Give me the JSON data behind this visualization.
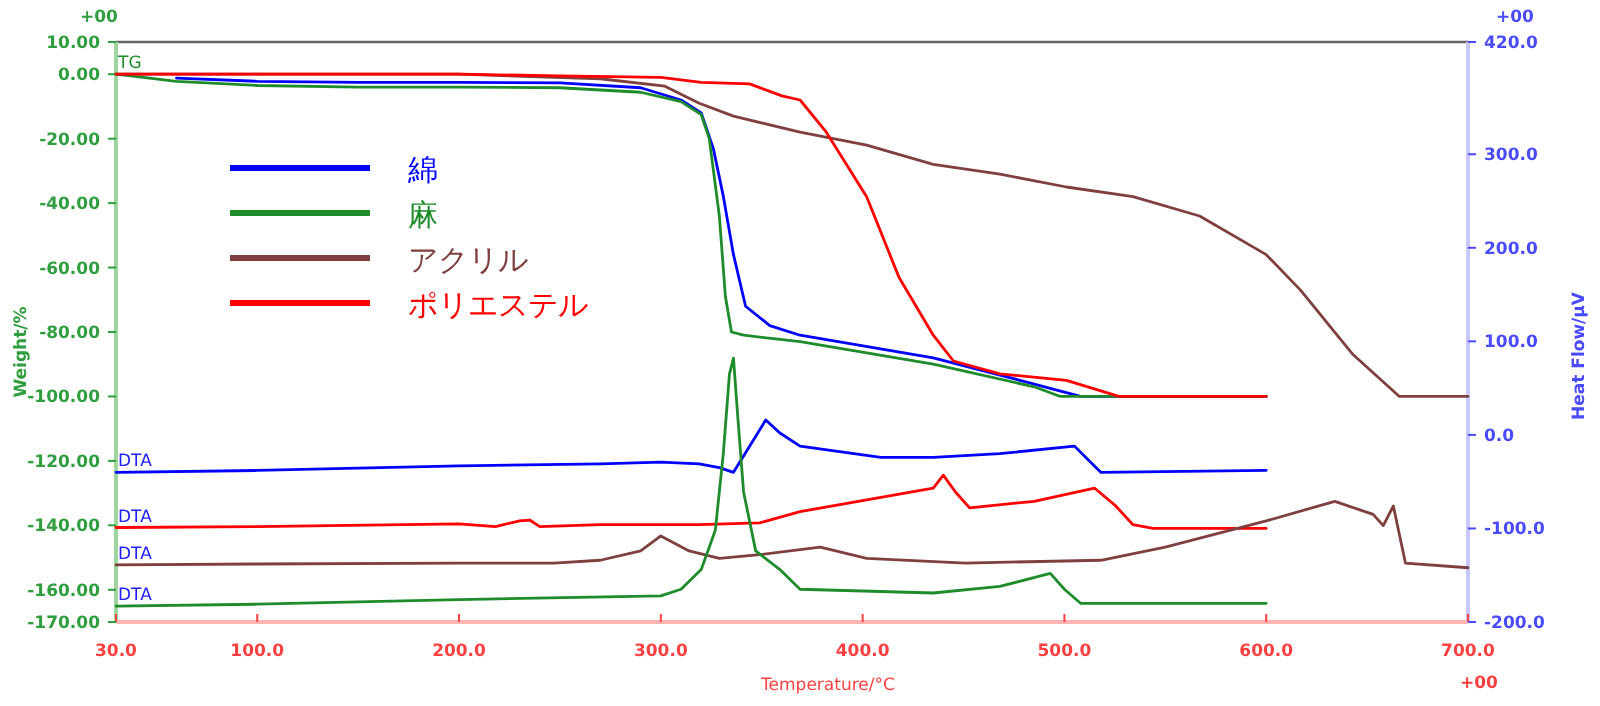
{
  "chart_data": {
    "type": "line",
    "xlabel": "Temperature/°C",
    "ylabel": "Weight/%",
    "y2label": "Heat Flow/μV",
    "xlim": [
      30,
      700
    ],
    "xticks": [
      {
        "value": 30,
        "label": "30.0"
      },
      {
        "value": 100,
        "label": "100.0"
      },
      {
        "value": 200,
        "label": "200.0"
      },
      {
        "value": 300,
        "label": "300.0"
      },
      {
        "value": 400,
        "label": "400.0"
      },
      {
        "value": 500,
        "label": "500.0"
      },
      {
        "value": 600,
        "label": "600.0"
      },
      {
        "value": 700,
        "label": "700.0"
      }
    ],
    "ylim": [
      -170,
      10
    ],
    "yticks": [
      {
        "value": 10,
        "label": "10.00"
      },
      {
        "value": 0,
        "label": "0.00"
      },
      {
        "value": -20,
        "label": "-20.00"
      },
      {
        "value": -40,
        "label": "-40.00"
      },
      {
        "value": -60,
        "label": "-60.00"
      },
      {
        "value": -80,
        "label": "-80.00"
      },
      {
        "value": -100,
        "label": "-100.00"
      },
      {
        "value": -120,
        "label": "-120.00"
      },
      {
        "value": -140,
        "label": "-140.00"
      },
      {
        "value": -160,
        "label": "-160.00"
      },
      {
        "value": -170,
        "label": "-170.00"
      }
    ],
    "y2lim": [
      -200,
      420
    ],
    "y2ticks": [
      {
        "value": 420,
        "label": "420.0"
      },
      {
        "value": 300,
        "label": "300.0"
      },
      {
        "value": 200,
        "label": "200.0"
      },
      {
        "value": 100,
        "label": "100.0"
      },
      {
        "value": 0,
        "label": "0.0"
      },
      {
        "value": -100,
        "label": "-100.0"
      },
      {
        "value": -200,
        "label": "-200.0"
      }
    ],
    "grid": false,
    "legend": "top left",
    "annotations": [
      "TG",
      "DTA",
      "DTA",
      "DTA",
      "DTA",
      "+00",
      "+00",
      "+00"
    ],
    "series": [
      {
        "name": "綿",
        "color": "#0000ff",
        "x": [
          60,
          100,
          150,
          200,
          250,
          290,
          310,
          320,
          326,
          331,
          336,
          342,
          354,
          369,
          435,
          478,
          508,
          600
        ],
        "values": [
          -1.2,
          -2.2,
          -2.5,
          -2.5,
          -2.7,
          -4.2,
          -8,
          -12,
          -23,
          -38,
          -56,
          -72,
          -78,
          -81,
          -88,
          -95,
          -100,
          -100
        ]
      },
      {
        "name": "麻",
        "color": "#1e8c2a",
        "x": [
          30,
          60,
          100,
          150,
          200,
          250,
          290,
          310,
          320,
          324,
          329,
          332,
          335,
          341,
          369,
          435,
          485,
          498,
          600
        ],
        "values": [
          0,
          -2.2,
          -3.5,
          -4,
          -4,
          -4.2,
          -5.6,
          -8.5,
          -12.5,
          -20,
          -44,
          -69,
          -80,
          -81,
          -83,
          -90,
          -97,
          -100,
          -100
        ]
      },
      {
        "name": "アクリル",
        "color": "#7f3f3f",
        "x": [
          30,
          100,
          200,
          270,
          302,
          319,
          336,
          369,
          402,
          435,
          468,
          501,
          534,
          567,
          600,
          617,
          643,
          666,
          700
        ],
        "values": [
          0,
          0,
          0,
          -1.4,
          -3.7,
          -9,
          -13,
          -18,
          -22,
          -28,
          -31,
          -35,
          -38,
          -44,
          -56,
          -67,
          -87,
          -100,
          -100
        ]
      },
      {
        "name": "ポリエステル",
        "color": "#ff0000",
        "x": [
          30,
          100,
          200,
          250,
          300,
          320,
          344,
          360,
          369,
          382,
          402,
          418,
          435,
          445,
          468,
          501,
          527,
          600
        ],
        "values": [
          0,
          0,
          0,
          -0.5,
          -1,
          -2.5,
          -3,
          -6.7,
          -8,
          -18,
          -38,
          -63,
          -81,
          -89,
          -93,
          -95,
          -100,
          -100
        ]
      },
      {
        "color": "#0000ff",
        "axis": "y2",
        "x": [
          30,
          100,
          200,
          270,
          300,
          319,
          329,
          336,
          342,
          352,
          359,
          369,
          409,
          435,
          468,
          505,
          511,
          518,
          600
        ],
        "values": [
          -40,
          -38,
          -33,
          -31,
          -29,
          -31,
          -35,
          -40,
          -19,
          16,
          2,
          -12,
          -24,
          -24,
          -20,
          -12,
          -25,
          -40,
          -38
        ]
      },
      {
        "color": "#ff0000",
        "axis": "y2",
        "x": [
          30,
          100,
          200,
          218,
          230,
          235,
          240,
          270,
          319,
          349,
          369,
          435,
          440,
          446,
          453,
          485,
          515,
          525,
          534,
          544,
          600
        ],
        "values": [
          -99,
          -98,
          -95,
          -98,
          -92,
          -91,
          -98,
          -96,
          -96,
          -94,
          -82,
          -57,
          -43,
          -61,
          -78,
          -71,
          -57,
          -75,
          -96,
          -100,
          -100
        ]
      },
      {
        "color": "#7f3f3f",
        "axis": "y2",
        "x": [
          30,
          100,
          200,
          247,
          270,
          290,
          300,
          314,
          329,
          349,
          379,
          402,
          451,
          518,
          550,
          600,
          634,
          653,
          658,
          663,
          669,
          700
        ],
        "values": [
          -139,
          -138,
          -137,
          -137,
          -134,
          -124,
          -108,
          -124,
          -132,
          -128,
          -120,
          -132,
          -137,
          -134,
          -120,
          -92,
          -71,
          -85,
          -97,
          -76,
          -137,
          -142
        ]
      },
      {
        "color": "#1e8c2a",
        "axis": "y2",
        "x": [
          30,
          100,
          200,
          300,
          310,
          320,
          327,
          331,
          334,
          336,
          338,
          341,
          347,
          359,
          369,
          435,
          468,
          493,
          500,
          508,
          600
        ],
        "values": [
          -183,
          -181,
          -176,
          -172,
          -165,
          -144,
          -102,
          -19,
          65,
          82,
          23,
          -61,
          -124,
          -144,
          -165,
          -169,
          -162,
          -148,
          -165,
          -180,
          -180
        ]
      }
    ]
  }
}
